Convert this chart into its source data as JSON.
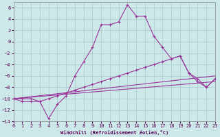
{
  "background_color": "#cce8e8",
  "grid_color": "#aacccc",
  "line_color": "#993399",
  "xlim": [
    0,
    23
  ],
  "ylim": [
    -14,
    7
  ],
  "ytick_vals": [
    -14,
    -12,
    -10,
    -8,
    -6,
    -4,
    -2,
    0,
    2,
    4,
    6
  ],
  "xtick_vals": [
    0,
    1,
    2,
    3,
    4,
    5,
    6,
    7,
    8,
    9,
    10,
    11,
    12,
    13,
    14,
    15,
    16,
    17,
    18,
    19,
    20,
    21,
    22,
    23
  ],
  "xlabel": "Windchill (Refroidissement éolien,°C)",
  "line1_x": [
    0,
    1,
    2,
    3,
    4,
    5,
    6,
    7,
    8,
    9,
    10,
    11,
    12,
    13,
    14,
    15,
    16,
    17,
    18,
    19,
    20,
    21,
    22,
    23
  ],
  "line1_y": [
    -10,
    -10.5,
    -10.5,
    -10.5,
    -13.5,
    -11,
    -9.5,
    -6,
    -3.5,
    -1,
    3,
    3,
    3.5,
    6.5,
    4.5,
    4.5,
    1,
    -1,
    -3,
    -2.5,
    -5.5,
    -6.5,
    -8,
    -6.5
  ],
  "line2_x": [
    0,
    1,
    2,
    3,
    4,
    5,
    6,
    7,
    8,
    9,
    10,
    11,
    12,
    13,
    14,
    15,
    16,
    17,
    18,
    19,
    20,
    21,
    22,
    23
  ],
  "line2_y": [
    -10,
    -10,
    -10,
    -10.5,
    -10,
    -9.5,
    -9,
    -8.5,
    -8,
    -7.5,
    -7,
    -6.5,
    -6,
    -5.5,
    -5,
    -4.5,
    -4,
    -3.5,
    -3,
    -2.5,
    -5.5,
    -7,
    -8,
    -6.5
  ],
  "line3_x": [
    0,
    23
  ],
  "line3_y": [
    -10,
    -7
  ],
  "line4_x": [
    0,
    23
  ],
  "line4_y": [
    -10,
    -6
  ]
}
